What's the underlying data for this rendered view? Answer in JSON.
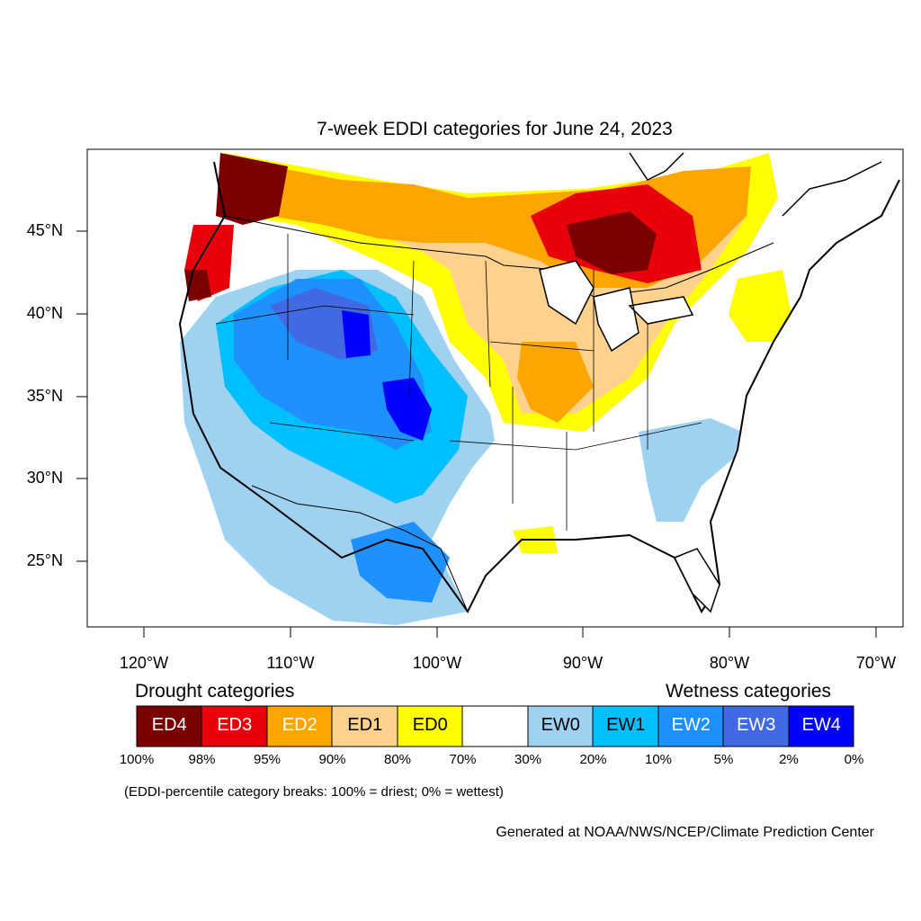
{
  "title": "7-week EDDI categories for June 24, 2023",
  "axes": {
    "lat_labels": [
      "45°N",
      "40°N",
      "35°N",
      "30°N",
      "25°N"
    ],
    "lon_labels": [
      "120°W",
      "110°W",
      "100°W",
      "90°W",
      "80°W",
      "70°W"
    ]
  },
  "legend": {
    "drought_heading": "Drought categories",
    "wetness_heading": "Wetness categories",
    "categories": [
      {
        "label": "ED4",
        "color": "#7a0000",
        "text_color": "#ffffff"
      },
      {
        "label": "ED3",
        "color": "#e8000b",
        "text_color": "#ffffff"
      },
      {
        "label": "ED2",
        "color": "#ffa500",
        "text_color": "#ffffff"
      },
      {
        "label": "ED1",
        "color": "#fed28c",
        "text_color": "#000000"
      },
      {
        "label": "ED0",
        "color": "#ffff00",
        "text_color": "#000000"
      },
      {
        "label": "",
        "color": "#ffffff",
        "text_color": "#000000"
      },
      {
        "label": "EW0",
        "color": "#9fd2f0",
        "text_color": "#000000"
      },
      {
        "label": "EW1",
        "color": "#00bfff",
        "text_color": "#000000"
      },
      {
        "label": "EW2",
        "color": "#1e90ff",
        "text_color": "#ffffff"
      },
      {
        "label": "EW3",
        "color": "#4169e1",
        "text_color": "#ffffff"
      },
      {
        "label": "EW4",
        "color": "#0000ff",
        "text_color": "#ffffff"
      }
    ],
    "breaks": [
      "100%",
      "98%",
      "95%",
      "90%",
      "80%",
      "70%",
      "30%",
      "20%",
      "10%",
      "5%",
      "2%",
      "0%"
    ]
  },
  "note": "(EDDI-percentile category breaks: 100% = driest; 0% = wettest)",
  "credit": "Generated at NOAA/NWS/NCEP/Climate Prediction Center"
}
